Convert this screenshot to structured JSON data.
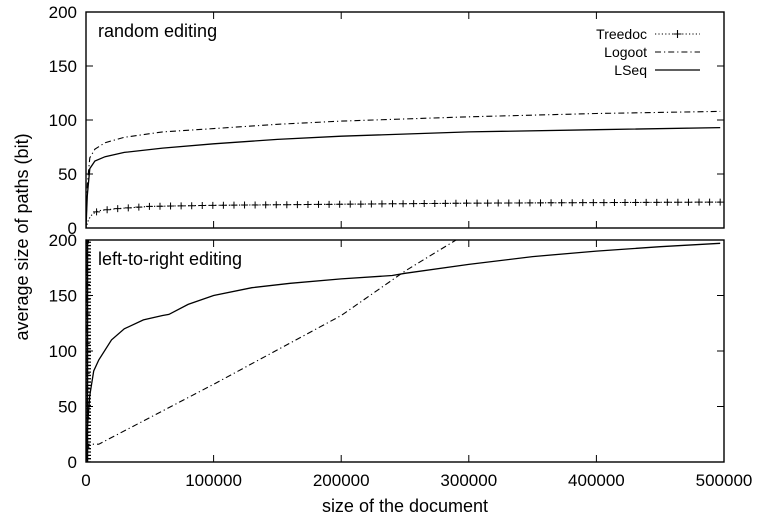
{
  "chart_data": {
    "type": "line",
    "xlabel": "size of the document",
    "ylabel": "average size of paths (bit)",
    "xlim": [
      0,
      500000
    ],
    "xticks": [
      "0",
      "100000",
      "200000",
      "300000",
      "400000",
      "500000"
    ],
    "legend": {
      "placement": "top-right",
      "entries": [
        {
          "name": "Treedoc",
          "style": "dotted-cross"
        },
        {
          "name": "Logoot",
          "style": "dash-dot"
        },
        {
          "name": "LSeq",
          "style": "solid"
        }
      ]
    },
    "panels": [
      {
        "id": "random",
        "label": "random editing",
        "ylim": [
          0,
          200
        ],
        "yticks": [
          "0",
          "50",
          "100",
          "150",
          "200"
        ],
        "series": [
          {
            "name": "Treedoc",
            "style": "dotted-cross",
            "x": [
              0,
              2000,
              5000,
              10000,
              25000,
              50000,
              100000,
              200000,
              300000,
              400000,
              497000
            ],
            "y": [
              0,
              8,
              13,
              16,
              18,
              20,
              21,
              22,
              23,
              23.5,
              24
            ]
          },
          {
            "name": "Logoot",
            "style": "dash-dot",
            "x": [
              0,
              1000,
              3000,
              7000,
              15000,
              30000,
              60000,
              100000,
              150000,
              200000,
              300000,
              400000,
              497000
            ],
            "y": [
              0,
              40,
              65,
              73,
              79,
              84,
              89,
              92,
              96,
              99,
              103,
              106,
              108
            ]
          },
          {
            "name": "LSeq",
            "style": "solid",
            "x": [
              0,
              1000,
              3000,
              7000,
              15000,
              30000,
              60000,
              100000,
              150000,
              200000,
              300000,
              400000,
              497000
            ],
            "y": [
              0,
              30,
              55,
              62,
              66,
              70,
              74,
              78,
              82,
              85,
              89,
              91,
              93
            ]
          }
        ]
      },
      {
        "id": "left-to-right",
        "label": "left-to-right editing",
        "ylim": [
          0,
          200
        ],
        "yticks": [
          "0",
          "50",
          "100",
          "150",
          "200"
        ],
        "series": [
          {
            "name": "Treedoc",
            "style": "dotted-cross",
            "x": [
              0,
              500,
              1000,
              1500,
              2000
            ],
            "y": [
              0,
              200,
              200,
              200,
              200
            ]
          },
          {
            "name": "Logoot",
            "style": "dash-dot",
            "x": [
              0,
              2000,
              10000,
              50000,
              100000,
              150000,
              200000,
              250000,
              290000
            ],
            "y": [
              0,
              16,
              16,
              40,
              70,
              101,
              132,
              172,
              200
            ]
          },
          {
            "name": "LSeq",
            "style": "solid",
            "x": [
              0,
              1000,
              3000,
              6000,
              10000,
              20000,
              30000,
              45000,
              60000,
              65000,
              80000,
              100000,
              130000,
              160000,
              200000,
              240000,
              250000,
              300000,
              350000,
              400000,
              450000,
              497000
            ],
            "y": [
              0,
              30,
              60,
              82,
              92,
              110,
              120,
              128,
              132,
              133,
              142,
              150,
              157,
              161,
              165,
              168,
              170,
              178,
              185,
              190,
              194,
              197
            ]
          }
        ]
      }
    ]
  }
}
